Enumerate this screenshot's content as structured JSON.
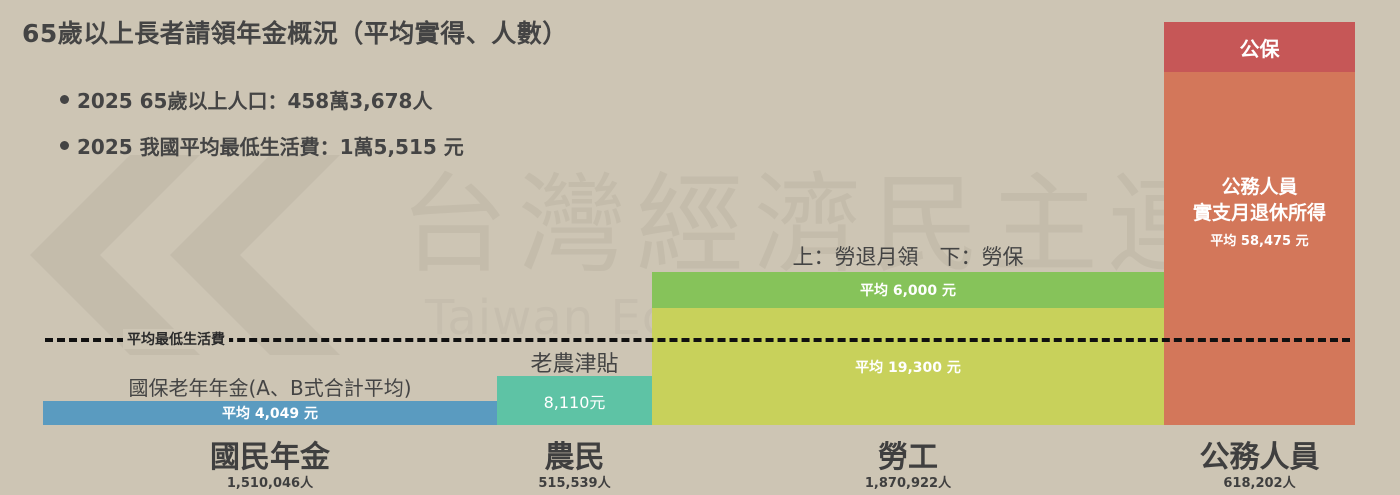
{
  "title": "65歲以上長者請領年金概況（平均實得、人數）",
  "bullets": [
    "2025 65歲以上人口：458萬3,678人",
    "2025 我國平均最低生活費：1萬5,515 元"
  ],
  "watermark": {
    "cn": "台灣經濟民主連合",
    "en": "Taiwan Economic Democracy Union"
  },
  "min_living_cost_label": "平均最低生活費",
  "chart_data": {
    "type": "bar",
    "title": "65歲以上長者請領年金概況（平均實得、人數）",
    "reference_line": {
      "label": "平均最低生活費",
      "value": 15515
    },
    "categories": [
      "國民年金",
      "農民",
      "勞工",
      "公務人員"
    ],
    "counts": [
      "1,510,046人",
      "515,539人",
      "1,870,922人",
      "618,202人"
    ],
    "series": [
      {
        "category": "國民年金",
        "name": "國保老年年金(A、B式合計平均)",
        "value": 4049,
        "label": "平均 4,049 元",
        "color": "#5a9bc0"
      },
      {
        "category": "農民",
        "name": "老農津貼",
        "value": 8110,
        "label": "8,110元",
        "color": "#5ec3a5"
      },
      {
        "category": "勞工",
        "name": "勞保",
        "value": 19300,
        "label": "平均 19,300 元",
        "color": "#c8d15b"
      },
      {
        "category": "勞工",
        "name": "勞退月領",
        "value": 6000,
        "label": "平均 6,000 元",
        "color": "#86c35a"
      },
      {
        "category": "公務人員",
        "name": "公務人員實支月退休所得",
        "value": 58475,
        "label": "平均 58,475 元",
        "color": "#d3775a"
      },
      {
        "category": "公務人員",
        "name": "公保",
        "value": null,
        "label": "公保",
        "color": "#c65757"
      }
    ],
    "labor_header": "上：勞退月領　下：勞保",
    "civil_servant_text": [
      "公務人員",
      "實支月退休所得"
    ]
  }
}
